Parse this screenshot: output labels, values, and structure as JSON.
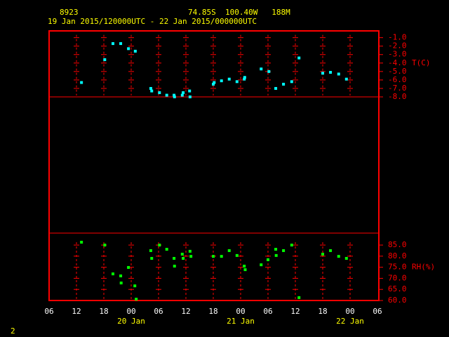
{
  "chart_data": {
    "type": "scatter",
    "title": "8923",
    "subtitle": "74.85S  100.40W   188M",
    "period": "19 Jan 2015/120000UTC - 22 Jan 2015/000000UTC",
    "page_label": "2",
    "xlim": [
      6,
      78
    ],
    "xticks": [
      {
        "value": 6,
        "label": "06"
      },
      {
        "value": 12,
        "label": "12"
      },
      {
        "value": 18,
        "label": "18"
      },
      {
        "value": 24,
        "label": "00"
      },
      {
        "value": 30,
        "label": "06"
      },
      {
        "value": 36,
        "label": "12"
      },
      {
        "value": 42,
        "label": "18"
      },
      {
        "value": 48,
        "label": "00"
      },
      {
        "value": 54,
        "label": "06"
      },
      {
        "value": 60,
        "label": "12"
      },
      {
        "value": 66,
        "label": "18"
      },
      {
        "value": 72,
        "label": "00"
      },
      {
        "value": 78,
        "label": "06"
      }
    ],
    "date_labels": [
      {
        "value": 24,
        "label": "20 Jan"
      },
      {
        "value": 48,
        "label": "21 Jan"
      },
      {
        "value": 72,
        "label": "22 Jan"
      }
    ],
    "frame_color": "#ff0000",
    "grid": true,
    "panels": [
      {
        "ylabel": "T(C)",
        "ylabel_value": -4,
        "ylim": [
          -8,
          -0.2
        ],
        "yticks": [
          {
            "value": -1,
            "label": "-1.0"
          },
          {
            "value": -2,
            "label": "-2.0"
          },
          {
            "value": -3,
            "label": "-3.0"
          },
          {
            "value": -4,
            "label": "-4.0"
          },
          {
            "value": -5,
            "label": "-5.0"
          },
          {
            "value": -6,
            "label": "-6.0"
          },
          {
            "value": -7,
            "label": "-7.0"
          },
          {
            "value": -8,
            "label": "-8.0"
          }
        ],
        "series": [
          {
            "color": "#00ffff",
            "x": [
              13.1,
              18.2,
              20.0,
              21.7,
              23.4,
              24.9,
              28.3,
              28.5,
              30.2,
              31.8,
              33.4,
              33.5,
              35.2,
              35.4,
              36.8,
              36.9,
              42.0,
              42.2,
              43.8,
              45.5,
              47.2,
              48.8,
              48.9,
              52.5,
              54.2,
              55.7,
              57.4,
              59.2,
              60.8,
              66.0,
              67.7,
              69.5,
              71.2
            ],
            "values": [
              -6.3,
              -3.6,
              -1.7,
              -1.7,
              -2.3,
              -2.6,
              -7.0,
              -7.3,
              -7.5,
              -7.8,
              -7.8,
              -8.0,
              -7.8,
              -7.5,
              -7.3,
              -8.0,
              -6.5,
              -6.3,
              -6.1,
              -5.9,
              -6.2,
              -5.9,
              -5.7,
              -4.7,
              -5.0,
              -7.0,
              -6.5,
              -6.2,
              -3.4,
              -5.2,
              -5.1,
              -5.3,
              -5.9
            ]
          }
        ]
      },
      {
        "ylabel": "RH(%)",
        "ylabel_value": 75,
        "ylim": [
          60,
          90.4
        ],
        "yticks": [
          {
            "value": 85,
            "label": "85.0"
          },
          {
            "value": 80,
            "label": "80.0"
          },
          {
            "value": 75,
            "label": "75.0"
          },
          {
            "value": 70,
            "label": "70.0"
          },
          {
            "value": 65,
            "label": "65.0"
          },
          {
            "value": 60,
            "label": "60.0"
          }
        ],
        "series": [
          {
            "color": "#00ff00",
            "x": [
              13.1,
              18.2,
              20.0,
              21.7,
              21.8,
              23.4,
              24.8,
              25.1,
              28.3,
              28.5,
              30.2,
              31.8,
              33.4,
              33.5,
              35.2,
              35.4,
              36.9,
              37.1,
              42.0,
              43.8,
              45.5,
              47.2,
              48.8,
              49.0,
              52.5,
              54.0,
              55.7,
              55.8,
              57.4,
              59.2,
              60.8,
              66.0,
              67.7,
              69.5,
              71.2
            ],
            "values": [
              86.3,
              85.0,
              72.0,
              71.1,
              67.9,
              74.9,
              66.6,
              60.6,
              82.5,
              79.0,
              85.0,
              83.1,
              79.0,
              75.5,
              80.9,
              79.0,
              82.2,
              79.9,
              79.9,
              79.9,
              82.5,
              80.3,
              75.5,
              73.9,
              76.1,
              78.4,
              83.1,
              80.3,
              82.5,
              85.0,
              61.3,
              80.9,
              82.5,
              79.9,
              79.0
            ]
          }
        ]
      }
    ]
  }
}
